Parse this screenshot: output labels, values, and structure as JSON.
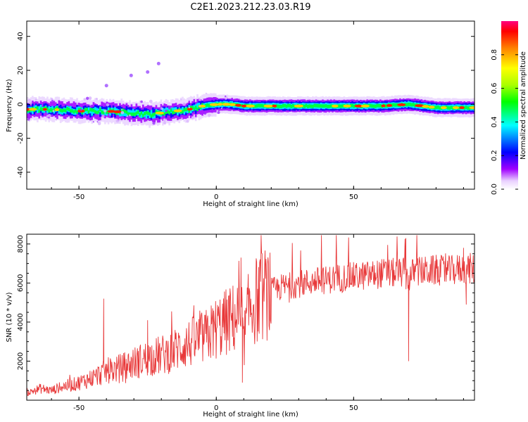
{
  "title": "C2E1.2023.212.23.03.R19",
  "chart_data": [
    {
      "type": "heatmap",
      "xlabel": "Height of straight line (km)",
      "ylabel": "Frequency (Hz)",
      "xlim": [
        -69,
        94
      ],
      "ylim": [
        -50,
        49
      ],
      "xticks": [
        -50,
        0,
        50
      ],
      "yticks": [
        -40,
        -20,
        0,
        20,
        40
      ],
      "colorbar": {
        "label": "Normalized spectral amplitude",
        "range": [
          0,
          1
        ],
        "ticks": [
          "0.0",
          "0.2",
          "0.4",
          "0.6",
          "0.8"
        ]
      },
      "ridge": {
        "description_points_x": [
          -68,
          -60,
          -50,
          -40,
          -30,
          -25,
          -20,
          -15,
          -10,
          -5,
          0,
          5,
          10,
          20,
          30,
          40,
          50,
          60,
          70,
          80,
          93
        ],
        "frequency_hz": [
          -3,
          -3,
          -4,
          -4,
          -5,
          -6,
          -5,
          -4,
          -3,
          -1,
          0,
          0,
          -1,
          -1,
          -1,
          -1,
          -1,
          -1,
          0,
          -2,
          -2
        ]
      },
      "outliers": [
        [
          -40,
          11
        ],
        [
          -31,
          17
        ],
        [
          -25,
          19
        ],
        [
          -21,
          24
        ]
      ]
    },
    {
      "type": "line",
      "xlabel": "Height of straight line (km)",
      "ylabel": "SNR (10 * v/v)",
      "xlim": [
        -69,
        94
      ],
      "ylim": [
        0,
        8500
      ],
      "xticks": [
        -50,
        0,
        50
      ],
      "yticks": [
        2000,
        4000,
        6000,
        8000
      ],
      "series": [
        {
          "color": "#e8393a",
          "x": [
            -68,
            -64,
            -60,
            -56,
            -52,
            -48,
            -44,
            -40,
            -36,
            -32,
            -28,
            -24,
            -20,
            -16,
            -12,
            -8,
            -4,
            0,
            4,
            8,
            10,
            12,
            16,
            20,
            24,
            28,
            32,
            36,
            40,
            44,
            48,
            52,
            56,
            60,
            64,
            68,
            70,
            72,
            76,
            80,
            84,
            88,
            92,
            94
          ],
          "y": [
            400,
            600,
            500,
            700,
            800,
            1000,
            1200,
            1500,
            1600,
            1800,
            2000,
            2200,
            2300,
            2500,
            2800,
            3000,
            3200,
            3700,
            4000,
            4300,
            3000,
            4800,
            5300,
            5600,
            5800,
            5900,
            6000,
            6100,
            6150,
            6250,
            6300,
            6350,
            6400,
            6500,
            6500,
            6550,
            6200,
            6600,
            6600,
            6650,
            6600,
            6700,
            6750,
            6700
          ]
        }
      ],
      "spikes": [
        [
          -41,
          5200
        ],
        [
          -25,
          4100
        ],
        [
          9,
          7300
        ],
        [
          9.5,
          900
        ],
        [
          69,
          8300
        ],
        [
          70,
          2000
        ],
        [
          90,
          7800
        ],
        [
          91,
          4900
        ]
      ]
    }
  ]
}
